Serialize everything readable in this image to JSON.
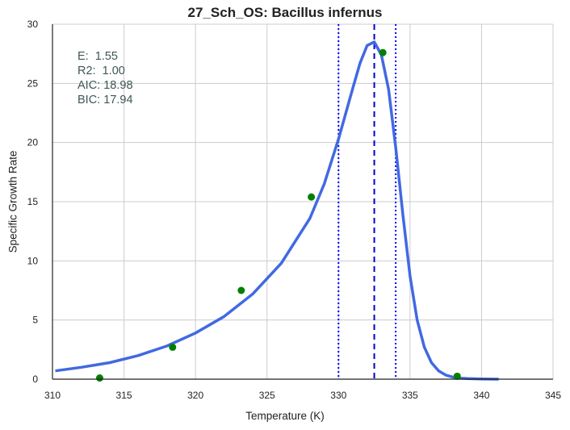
{
  "chart_data": {
    "type": "line",
    "title": "27_Sch_OS: Bacillus infernus",
    "xlabel": "Temperature (K)",
    "ylabel": "Specific Growth Rate",
    "xlim": [
      310,
      345
    ],
    "ylim": [
      0,
      30
    ],
    "xticks": [
      310,
      315,
      320,
      325,
      330,
      335,
      340,
      345
    ],
    "yticks": [
      0,
      5,
      10,
      15,
      20,
      25,
      30
    ],
    "grid": true,
    "stats": [
      "E:  1.55",
      "R2:  1.00",
      "AIC: 18.98",
      "BIC: 17.94"
    ],
    "series": [
      {
        "kind": "line",
        "color": "#4169e1",
        "x": [
          310.2,
          312,
          314,
          316,
          318,
          320,
          322,
          324,
          326,
          328,
          329,
          330,
          331,
          331.5,
          332,
          332.5,
          333,
          333.5,
          334,
          334.5,
          335,
          335.5,
          336,
          336.5,
          337,
          337.5,
          338,
          338.5,
          339,
          340,
          341.2
        ],
        "y": [
          0.7,
          1.0,
          1.4,
          2.0,
          2.8,
          3.9,
          5.3,
          7.2,
          9.8,
          13.6,
          16.5,
          20.3,
          24.6,
          26.7,
          28.2,
          28.5,
          27.4,
          24.5,
          19.6,
          13.9,
          8.7,
          5.0,
          2.7,
          1.4,
          0.7,
          0.35,
          0.18,
          0.09,
          0.05,
          0.02,
          0.0
        ]
      },
      {
        "kind": "scatter",
        "color": "#008000",
        "x": [
          313.3,
          318.4,
          323.2,
          328.1,
          333.1,
          338.3
        ],
        "y": [
          0.1,
          2.7,
          7.5,
          15.4,
          27.6,
          0.25
        ]
      }
    ],
    "vlines": [
      {
        "x": 330.0,
        "style": "dotted",
        "color": "#0000ff"
      },
      {
        "x": 332.5,
        "style": "dashed",
        "color": "#0000cd"
      },
      {
        "x": 334.0,
        "style": "dotted",
        "color": "#0000ff"
      }
    ]
  }
}
